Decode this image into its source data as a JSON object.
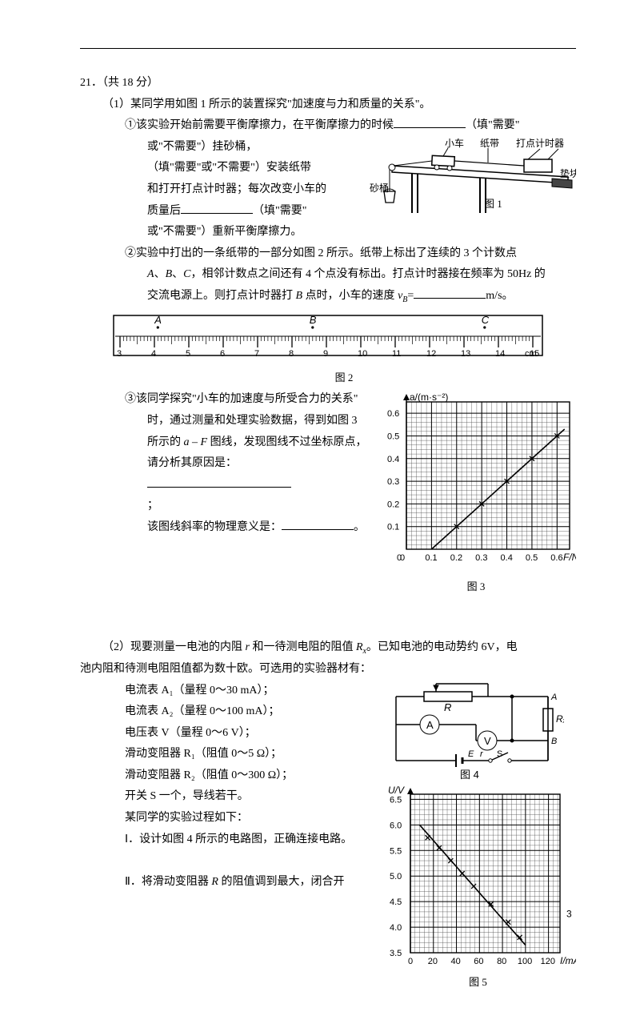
{
  "header": {
    "q_num": "21．（共 18 分）"
  },
  "part1": {
    "intro": "（1）某同学用如图 1 所示的装置探究\"加速度与力和质量的关系\"。",
    "p1a": "①该实验开始前需要平衡摩擦力，在平衡摩擦力的时候",
    "p1a_tail": "（填\"需要\"",
    "p1b": "或\"不需要\"）挂砂桶，",
    "p1c": "（填\"需要\"或\"不需要\"）安装纸带",
    "p1d": "和打开打点计时器；每次改变小车的",
    "p1e": "质量后",
    "p1e_tail": "（填\"需要\"",
    "p1f": "或\"不需要\"）重新平衡摩擦力。",
    "fig1": {
      "labels": {
        "cart": "小车",
        "tape": "纸带",
        "timer": "打点计时器",
        "block": "垫块",
        "bucket": "砂桶",
        "caption": "图 1"
      }
    },
    "p2a": "②实验中打出的一条纸带的一部分如图 2 所示。纸带上标出了连续的 3 个计数点",
    "p2b_pre": "",
    "p2b_A": "A",
    "p2b_B": "B",
    "p2b_C": "C",
    "p2b_mid1": "、",
    "p2b_mid2": "、",
    "p2b_mid3": "，相邻计数点之间还有 4 个点没有标出。打点计时器接在频率为 50Hz 的",
    "p2c_pre": "交流电源上。则打点计时器打 ",
    "p2c_B": "B",
    "p2c_mid": " 点时，小车的速度 ",
    "p2c_vB": "v",
    "p2c_vB_sub": "B",
    "p2c_eq": "=",
    "p2c_unit": "m/s。",
    "ruler": {
      "A_x": 4.1,
      "B_x": 8.6,
      "C_x": 13.6,
      "start": 3,
      "end": 15,
      "major_step": 1,
      "minor_per_major": 10,
      "unit": "cm",
      "caption": "图 2"
    },
    "p3a": "③该同学探究\"小车的加速度与所受合力的关系\"",
    "p3b": "时，通过测量和处理实验数据，得到如图 3",
    "p3c_pre": "所示的 ",
    "p3c_aF": "a – F",
    "p3c_tail": " 图线，发现图线不过坐标原点，",
    "p3d": "请分析其原因是：",
    "p3e": "；",
    "p3f": "该图线斜率的物理意义是：",
    "p3f_tail": "。",
    "chart3": {
      "type": "scatter-line",
      "x_label": "F/N",
      "y_label": "a/(m·s⁻²)",
      "xlim": [
        0,
        0.65
      ],
      "ylim": [
        0,
        0.65
      ],
      "xticks": [
        0,
        0.1,
        0.2,
        0.3,
        0.4,
        0.5,
        0.6
      ],
      "yticks": [
        0.1,
        0.2,
        0.3,
        0.4,
        0.5,
        0.6
      ],
      "points": [
        [
          0.2,
          0.1
        ],
        [
          0.3,
          0.2
        ],
        [
          0.4,
          0.3
        ],
        [
          0.5,
          0.4
        ],
        [
          0.6,
          0.5
        ]
      ],
      "line_start": [
        0.1,
        0
      ],
      "line_end": [
        0.63,
        0.53
      ],
      "grid_minor": 5,
      "bg": "#ffffff",
      "grid_color": "#000000",
      "line_color": "#000000",
      "caption": "图 3"
    }
  },
  "part2": {
    "intro_a": "（2）现要测量一电池的内阻 ",
    "intro_r": "r",
    "intro_b": " 和一待测电阻的阻值 ",
    "intro_Rx": "R",
    "intro_Rx_sub": "x",
    "intro_c": "。已知电池的电动势约 6V，电",
    "intro_d": "池内阻和待测电阻阻值都为数十欧。可选用的实验器材有：",
    "items": [
      "电流表 A₁（量程 0～30 mA）；",
      "电流表 A₂（量程 0～100 mA）；",
      "电压表 V（量程 0～6 V）；",
      "滑动变阻器 R₁（阻值 0～5 Ω）；",
      "滑动变阻器 R₂（阻值 0～300 Ω）；",
      "开关 S 一个，导线若干。",
      "某同学的实验过程如下："
    ],
    "step1": "Ⅰ．设计如图 4 所示的电路图，正确连接电路。",
    "step2_a": "Ⅱ．将滑动变阻器 ",
    "step2_R": "R",
    "step2_b": " 的阻值调到最大，闭合开",
    "circuit": {
      "labels": {
        "R": "R",
        "Rx": "Rₓ",
        "A": "A",
        "B": "B",
        "meterA": "A",
        "meterV": "V",
        "E": "E",
        "r": "r",
        "S": "S"
      },
      "caption": "图 4"
    },
    "chart5": {
      "type": "scatter-line",
      "x_label": "I/mA",
      "y_label": "U/V",
      "xlim": [
        0,
        130
      ],
      "ylim": [
        3.5,
        6.6
      ],
      "xticks": [
        0,
        20,
        40,
        60,
        80,
        100,
        120
      ],
      "yticks": [
        3.5,
        4.0,
        4.5,
        5.0,
        5.5,
        6.0,
        6.5
      ],
      "points": [
        [
          15,
          5.75
        ],
        [
          25,
          5.55
        ],
        [
          35,
          5.3
        ],
        [
          45,
          5.05
        ],
        [
          55,
          4.8
        ],
        [
          70,
          4.45
        ],
        [
          85,
          4.1
        ],
        [
          95,
          3.8
        ]
      ],
      "line_start": [
        8,
        6.0
      ],
      "line_end": [
        100,
        3.65
      ],
      "grid_minor": 5,
      "bg": "#ffffff",
      "grid_color": "#000000",
      "line_color": "#000000",
      "caption": "图 5",
      "extra_label": "3"
    }
  }
}
